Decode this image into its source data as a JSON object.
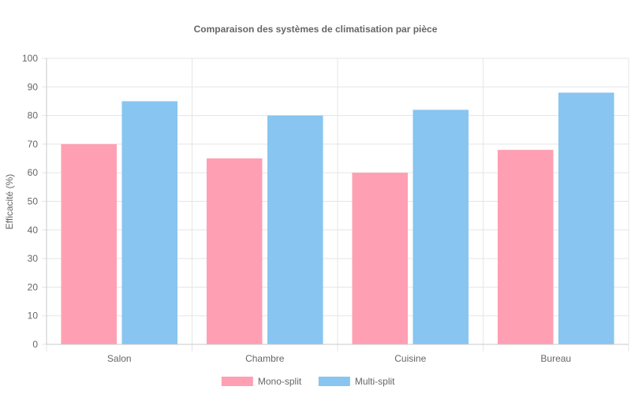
{
  "chart_data": {
    "type": "bar",
    "title": "Comparaison des systèmes de climatisation par pièce",
    "xlabel": "",
    "ylabel": "Efficacité (%)",
    "ylim": [
      0,
      100
    ],
    "yticks": [
      0,
      10,
      20,
      30,
      40,
      50,
      60,
      70,
      80,
      90,
      100
    ],
    "categories": [
      "Salon",
      "Chambre",
      "Cuisine",
      "Bureau"
    ],
    "series": [
      {
        "name": "Mono-split",
        "values": [
          70,
          65,
          60,
          68
        ],
        "color": "#ff9fb3"
      },
      {
        "name": "Multi-split",
        "values": [
          85,
          80,
          82,
          88
        ],
        "color": "#88c5f0"
      }
    ],
    "grid": true,
    "legend": "bottom"
  }
}
